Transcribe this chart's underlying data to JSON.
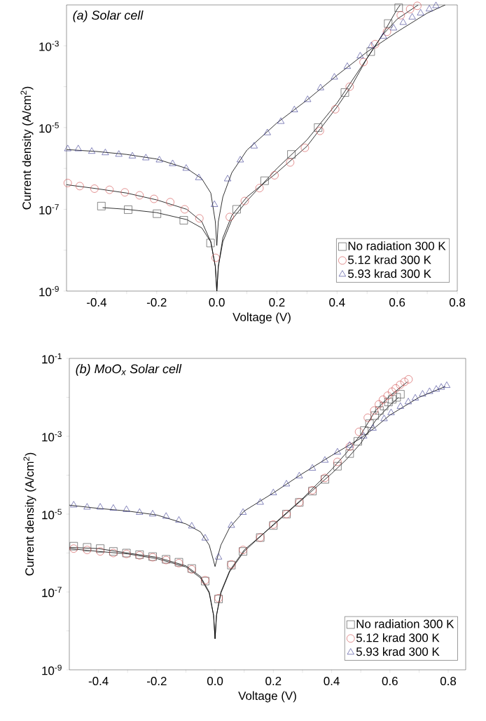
{
  "chart_data": [
    {
      "type": "scatter",
      "title": "(a) Solar cell",
      "xlabel": "Voltage (V)",
      "ylabel": "Current density (A/cm$^{2}$)",
      "log": "y",
      "legend": "bottom right",
      "xlim": [
        -0.5,
        0.8
      ],
      "ylim": [
        1e-09,
        0.01
      ],
      "xticks": [
        {
          "value": -0.4,
          "label": "-0.4"
        },
        {
          "value": -0.3,
          "label": null
        },
        {
          "value": -0.2,
          "label": "-0.2"
        },
        {
          "value": -0.1,
          "label": null
        },
        {
          "value": 0,
          "label": "0.0"
        },
        {
          "value": 0.1,
          "label": null
        },
        {
          "value": 0.2,
          "label": "0.2"
        },
        {
          "value": 0.3,
          "label": null
        },
        {
          "value": 0.4,
          "label": "0.4"
        },
        {
          "value": 0.5,
          "label": null
        },
        {
          "value": 0.6,
          "label": "0.6"
        },
        {
          "value": 0.7,
          "label": null
        },
        {
          "value": 0.8,
          "label": "0.8"
        }
      ],
      "yticks": [
        {
          "value": 1e-09,
          "label": "10$^{-9}$"
        },
        {
          "value": 1e-08,
          "label": null
        },
        {
          "value": 1e-07,
          "label": "10$^{-7}$"
        },
        {
          "value": 1e-06,
          "label": null
        },
        {
          "value": 1e-05,
          "label": "10$^{-5}$"
        },
        {
          "value": 0.0001,
          "label": null
        },
        {
          "value": 0.001,
          "label": "10$^{-3}$"
        }
      ],
      "series": [
        {
          "name": "No radiation 300 K",
          "marker": "square",
          "color": "#3a3a3a",
          "x": [
            -0.384,
            -0.295,
            -0.199,
            -0.11,
            -0.021,
            0.066,
            0.159,
            0.248,
            0.337,
            0.426,
            0.512,
            0.57,
            0.605
          ],
          "values": [
            1.2e-07,
            9.8e-08,
            7.8e-08,
            5.4e-08,
            1.5e-08,
            1e-07,
            5e-07,
            2.2e-06,
            1e-05,
            7.2e-05,
            0.00072,
            0.0035,
            0.0085
          ]
        },
        {
          "name": "5.12 krad 300 K",
          "marker": "circle",
          "color": "#d04848",
          "x": [
            -0.496,
            -0.456,
            -0.407,
            -0.357,
            -0.306,
            -0.257,
            -0.209,
            -0.155,
            -0.107,
            -0.058,
            -0.004,
            0.043,
            0.093,
            0.142,
            0.192,
            0.244,
            0.293,
            0.343,
            0.394,
            0.442,
            0.488,
            0.527,
            0.566,
            0.612,
            0.643,
            0.667
          ],
          "values": [
            4.4e-07,
            3.7e-07,
            3.2e-07,
            3e-07,
            2.6e-07,
            2.2e-07,
            1.8e-07,
            1.5e-07,
            1e-07,
            6e-08,
            6.5e-09,
            6.5e-08,
            1.6e-07,
            3.3e-07,
            6.8e-07,
            1.4e-06,
            3.2e-06,
            8.3e-06,
            2.8e-05,
            0.0001,
            0.0004,
            0.0011,
            0.0022,
            0.0056,
            0.0079,
            0.0095
          ]
        },
        {
          "name": "5.93 krad 300 K",
          "marker": "triangle",
          "color": "#35358f",
          "x": [
            -0.496,
            -0.461,
            -0.416,
            -0.371,
            -0.326,
            -0.281,
            -0.236,
            -0.191,
            -0.147,
            -0.102,
            -0.06,
            -0.008,
            0.036,
            0.078,
            0.124,
            0.168,
            0.213,
            0.258,
            0.302,
            0.345,
            0.391,
            0.434,
            0.477,
            0.514,
            0.554,
            0.588,
            0.62,
            0.65,
            0.678,
            0.707,
            0.729
          ],
          "values": [
            3e-06,
            3e-06,
            2.6e-06,
            2.4e-06,
            2.2e-06,
            2e-06,
            1.8e-06,
            1.6e-06,
            1.3e-06,
            1e-06,
            5.9e-07,
            1.3e-07,
            5.5e-07,
            1.6e-06,
            3.5e-06,
            7.4e-06,
            1.4e-05,
            2.7e-05,
            4.8e-05,
            9.3e-05,
            0.00017,
            0.00031,
            0.00056,
            0.001,
            0.0017,
            0.0027,
            0.0037,
            0.005,
            0.0063,
            0.0079,
            0.0095
          ]
        },
        {
          "type": "line",
          "marker": "none",
          "color": "#000000",
          "x": [
            -0.38,
            -0.3,
            -0.2,
            -0.1,
            -0.05,
            -0.02,
            -0.005,
            0,
            0.005,
            0.02,
            0.05,
            0.1,
            0.2,
            0.3,
            0.4,
            0.5,
            0.55,
            0.6,
            0.61
          ],
          "values": [
            1.1e-07,
            1e-07,
            8.3e-08,
            5.6e-08,
            3.5e-08,
            1.6e-08,
            4e-09,
            1e-09,
            4e-09,
            1.6e-08,
            5.6e-08,
            1.6e-07,
            1e-06,
            5e-06,
            4e-05,
            0.0005,
            0.0018,
            0.0079,
            0.01
          ]
        },
        {
          "type": "line",
          "marker": "none",
          "color": "#000000",
          "x": [
            -0.5,
            -0.4,
            -0.3,
            -0.2,
            -0.1,
            -0.05,
            -0.02,
            -0.005,
            0,
            0.005,
            0.02,
            0.05,
            0.1,
            0.2,
            0.3,
            0.4,
            0.45,
            0.5,
            0.55,
            0.6,
            0.67
          ],
          "values": [
            4e-07,
            3.2e-07,
            2.5e-07,
            1.7e-07,
            1e-07,
            5e-08,
            1.6e-08,
            4e-09,
            1e-09,
            4e-09,
            2e-08,
            7.1e-08,
            2e-07,
            7.9e-07,
            3.5e-06,
            3.2e-05,
            0.00011,
            0.0005,
            0.0018,
            0.0045,
            0.01
          ]
        },
        {
          "type": "line",
          "marker": "none",
          "color": "#000000",
          "x": [
            -0.5,
            -0.4,
            -0.3,
            -0.2,
            -0.1,
            -0.05,
            -0.02,
            -0.005,
            0,
            0.005,
            0.02,
            0.05,
            0.1,
            0.2,
            0.3,
            0.4,
            0.5,
            0.6,
            0.7,
            0.76
          ],
          "values": [
            2.9e-06,
            2.6e-06,
            2.2e-06,
            1.7e-06,
            1e-06,
            5.6e-07,
            2.5e-07,
            5e-08,
            1.3e-08,
            5e-08,
            2e-07,
            7.9e-07,
            2.8e-06,
            1.3e-05,
            4.7e-05,
            0.00019,
            0.00071,
            0.0022,
            0.0063,
            0.01
          ]
        }
      ]
    },
    {
      "type": "scatter",
      "title": "(b) MoO$_{x}$ Solar cell",
      "xlabel": "Voltage (V)",
      "ylabel": "Current density (A/cm$^{2}$)",
      "log": "y",
      "legend": "bottom right",
      "xlim": [
        -0.5,
        0.86
      ],
      "ylim": [
        1e-09,
        0.1
      ],
      "xticks": [
        {
          "value": -0.4,
          "label": "-0.4"
        },
        {
          "value": -0.3,
          "label": null
        },
        {
          "value": -0.2,
          "label": "-0.2"
        },
        {
          "value": -0.1,
          "label": null
        },
        {
          "value": 0,
          "label": "0.0"
        },
        {
          "value": 0.1,
          "label": null
        },
        {
          "value": 0.2,
          "label": "0.2"
        },
        {
          "value": 0.3,
          "label": null
        },
        {
          "value": 0.4,
          "label": "0.4"
        },
        {
          "value": 0.5,
          "label": null
        },
        {
          "value": 0.6,
          "label": "0.6"
        },
        {
          "value": 0.7,
          "label": null
        },
        {
          "value": 0.8,
          "label": "0.8"
        }
      ],
      "yticks": [
        {
          "value": 1e-09,
          "label": "10$^{-9}$"
        },
        {
          "value": 1e-08,
          "label": null
        },
        {
          "value": 1e-07,
          "label": "10$^{-7}$"
        },
        {
          "value": 1e-06,
          "label": null
        },
        {
          "value": 1e-05,
          "label": "10$^{-5}$"
        },
        {
          "value": 0.0001,
          "label": null
        },
        {
          "value": 0.001,
          "label": "10$^{-3}$"
        },
        {
          "value": 0.01,
          "label": null
        },
        {
          "value": 0.1,
          "label": "10$^{-1}$"
        }
      ],
      "series": [
        {
          "name": "No radiation 300 K",
          "marker": "square",
          "color": "#3a3a3a",
          "x": [
            -0.485,
            -0.439,
            -0.394,
            -0.349,
            -0.304,
            -0.259,
            -0.214,
            -0.168,
            -0.124,
            -0.08,
            -0.034,
            0.012,
            0.056,
            0.096,
            0.155,
            0.2,
            0.245,
            0.289,
            0.334,
            0.377,
            0.42,
            0.462,
            0.49,
            0.512,
            0.53,
            0.548,
            0.564,
            0.58,
            0.595,
            0.608,
            0.623,
            0.636
          ],
          "values": [
            1.5e-06,
            1.4e-06,
            1.3e-06,
            1.1e-06,
            1e-06,
            9.1e-07,
            8.1e-07,
            6.9e-07,
            5.8e-07,
            4e-07,
            1.9e-07,
            6.6e-08,
            4.9e-07,
            1.1e-06,
            2.5e-06,
            5.1e-06,
            1e-05,
            2e-05,
            3.9e-05,
            7.8e-05,
            0.00017,
            0.00036,
            0.00074,
            0.0014,
            0.0021,
            0.0034,
            0.0046,
            0.006,
            0.0076,
            0.0089,
            0.01,
            0.012
          ]
        },
        {
          "name": "5.12 krad 300 K",
          "marker": "circle",
          "color": "#d04848",
          "x": [
            -0.485,
            -0.439,
            -0.394,
            -0.349,
            -0.304,
            -0.259,
            -0.214,
            -0.168,
            -0.124,
            -0.08,
            -0.034,
            0.012,
            0.056,
            0.096,
            0.155,
            0.2,
            0.245,
            0.289,
            0.334,
            0.377,
            0.42,
            0.462,
            0.494,
            0.524,
            0.546,
            0.562,
            0.576,
            0.592,
            0.607,
            0.62,
            0.635,
            0.65,
            0.664
          ],
          "values": [
            1.3e-06,
            1.2e-06,
            1.1e-06,
            1e-06,
            9.5e-07,
            8.7e-07,
            7.8e-07,
            6.6e-07,
            5.5e-07,
            3.8e-07,
            2e-07,
            6.9e-08,
            5.1e-07,
            1.2e-06,
            2.5e-06,
            5.4e-06,
            1e-05,
            2e-05,
            4.1e-05,
            8.5e-05,
            0.00022,
            0.00054,
            0.0013,
            0.003,
            0.0046,
            0.0066,
            0.0087,
            0.011,
            0.014,
            0.017,
            0.021,
            0.025,
            0.029
          ]
        },
        {
          "name": "5.93 krad 300 K",
          "marker": "triangle",
          "color": "#35358f",
          "x": [
            -0.485,
            -0.439,
            -0.394,
            -0.349,
            -0.304,
            -0.259,
            -0.214,
            -0.168,
            -0.124,
            -0.08,
            -0.034,
            0.012,
            0.056,
            0.096,
            0.155,
            0.2,
            0.245,
            0.289,
            0.334,
            0.377,
            0.42,
            0.462,
            0.51,
            0.542,
            0.58,
            0.604,
            0.636,
            0.663,
            0.687,
            0.712,
            0.736,
            0.759,
            0.776,
            0.795
          ],
          "values": [
            1.7e-05,
            1.5e-05,
            1.5e-05,
            1.4e-05,
            1.3e-05,
            1.1e-05,
            1e-05,
            8.7e-06,
            6.9e-06,
            4.9e-06,
            2.4e-06,
            7.8e-07,
            5.1e-06,
            1.1e-05,
            2e-05,
            3.5e-05,
            5.9e-05,
            9.5e-05,
            0.00015,
            0.00024,
            0.00039,
            0.00058,
            0.001,
            0.0016,
            0.0028,
            0.004,
            0.0058,
            0.0076,
            0.0095,
            0.012,
            0.014,
            0.016,
            0.018,
            0.02
          ]
        },
        {
          "type": "line",
          "marker": "none",
          "color": "#000000",
          "x": [
            -0.5,
            -0.4,
            -0.3,
            -0.2,
            -0.1,
            -0.05,
            -0.02,
            -0.005,
            0,
            0.005,
            0.02,
            0.05,
            0.1,
            0.2,
            0.3,
            0.4,
            0.45,
            0.5,
            0.55,
            0.6,
            0.63
          ],
          "values": [
            1.4e-06,
            1.3e-06,
            1e-06,
            7.8e-07,
            4.7e-07,
            2.5e-07,
            1e-07,
            2.5e-08,
            6.3e-09,
            2.5e-08,
            1e-07,
            3.5e-07,
            1.2e-06,
            5.2e-06,
            2.4e-05,
            0.00011,
            0.00025,
            0.00066,
            0.0025,
            0.0063,
            0.01
          ]
        },
        {
          "type": "line",
          "marker": "none",
          "color": "#000000",
          "x": [
            -0.5,
            -0.4,
            -0.3,
            -0.2,
            -0.1,
            -0.05,
            -0.02,
            -0.005,
            0,
            0.005,
            0.02,
            0.05,
            0.1,
            0.2,
            0.3,
            0.4,
            0.45,
            0.5,
            0.55,
            0.6,
            0.66
          ],
          "values": [
            1.3e-06,
            1.1e-06,
            9.5e-07,
            7.2e-07,
            4.4e-07,
            2.3e-07,
            9.3e-08,
            2.5e-08,
            6.3e-09,
            2.5e-08,
            9.3e-08,
            3.3e-07,
            1.1e-06,
            5.4e-06,
            2.5e-05,
            0.00014,
            0.00037,
            0.0011,
            0.0045,
            0.011,
            0.025
          ]
        },
        {
          "type": "line",
          "marker": "none",
          "color": "#000000",
          "x": [
            -0.5,
            -0.4,
            -0.3,
            -0.2,
            -0.1,
            -0.05,
            -0.02,
            -0.005,
            0,
            0.005,
            0.02,
            0.05,
            0.1,
            0.2,
            0.3,
            0.4,
            0.5,
            0.55,
            0.6,
            0.7,
            0.79
          ],
          "values": [
            1.7e-05,
            1.4e-05,
            1.2e-05,
            9.5e-06,
            5.6e-06,
            3.5e-06,
            1.6e-06,
            6.3e-07,
            4.5e-07,
            6.3e-07,
            1.6e-06,
            4.5e-06,
            1.2e-05,
            3.5e-05,
            0.00011,
            0.00032,
            0.00089,
            0.0017,
            0.0035,
            0.01,
            0.019
          ]
        }
      ]
    }
  ]
}
